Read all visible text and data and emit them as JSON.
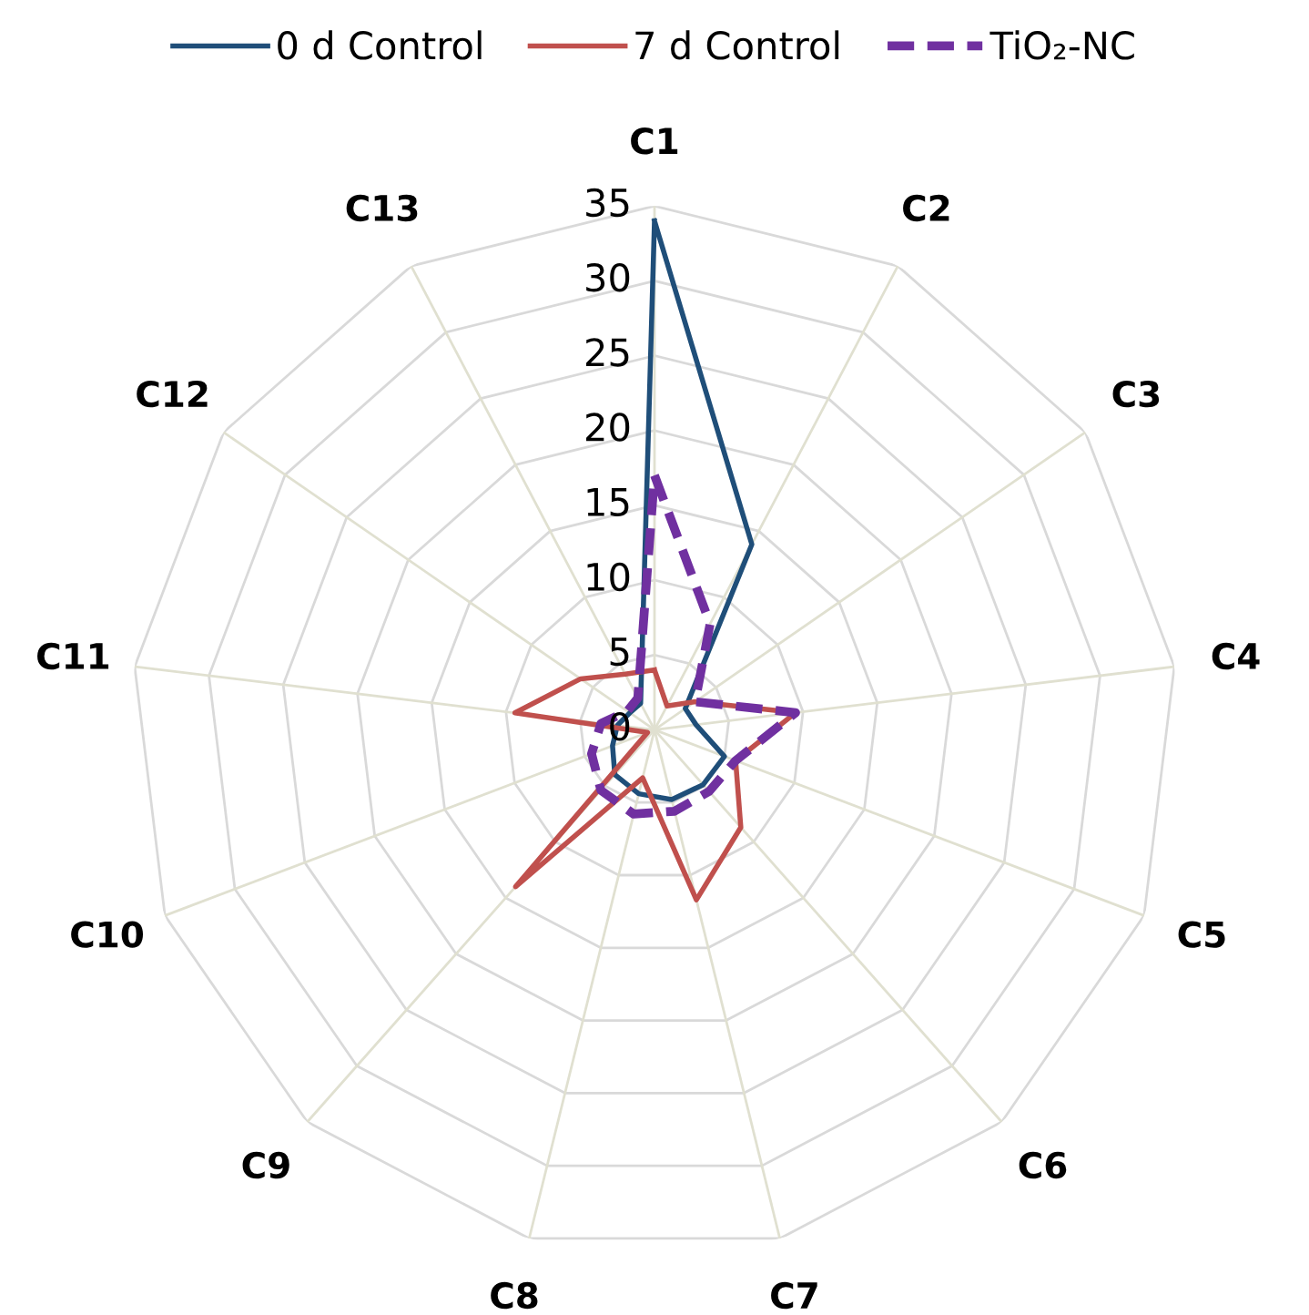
{
  "chart_data": {
    "type": "radar",
    "categories": [
      "C1",
      "C2",
      "C3",
      "C4",
      "C5",
      "C6",
      "C7",
      "C8",
      "C9",
      "C10",
      "C11",
      "C12",
      "C13"
    ],
    "series": [
      {
        "name": "0 d Control",
        "color": "#1f4e79",
        "line_style": "solid",
        "values": [
          34,
          14,
          2.5,
          2.8,
          5,
          4.9,
          4.8,
          4.4,
          4,
          3,
          2.5,
          2,
          2
        ]
      },
      {
        "name": "7 d Control",
        "color": "#c0504d",
        "line_style": "solid",
        "values": [
          4,
          1.8,
          3.3,
          9.5,
          5.8,
          8.7,
          11.7,
          3.3,
          14,
          0.5,
          9.4,
          6,
          4.2
        ]
      },
      {
        "name": "TiO₂-NC",
        "color": "#7030a0",
        "line_style": "dashed",
        "values": [
          17,
          8,
          3.3,
          9.5,
          5.8,
          5.5,
          5.6,
          5.8,
          5.4,
          4.5,
          3.6,
          2.2,
          2.4
        ]
      }
    ],
    "ylim": [
      0,
      35
    ],
    "yticks": [
      0,
      5,
      10,
      15,
      20,
      25,
      30,
      35
    ],
    "grid": true,
    "legend": "top",
    "marker": "none"
  }
}
